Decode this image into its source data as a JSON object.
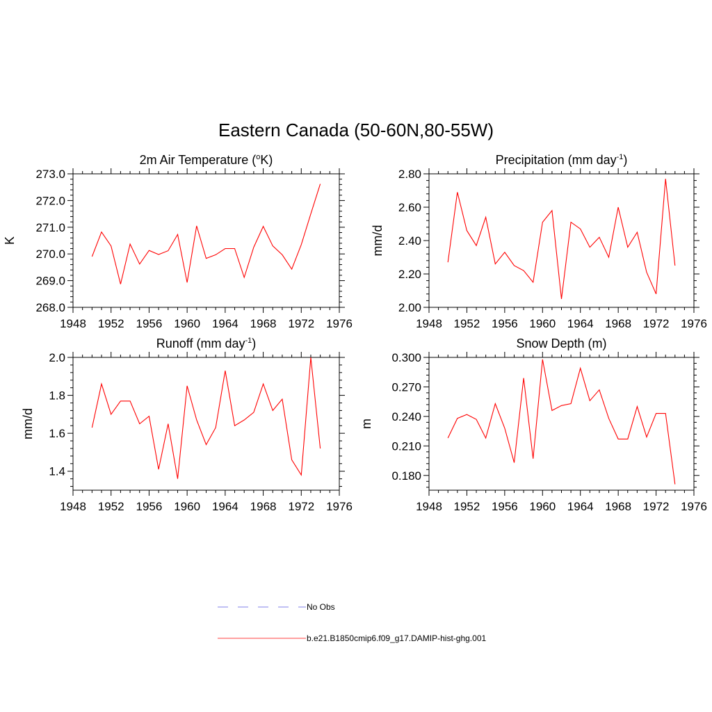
{
  "page": {
    "title": "Eastern Canada (50-60N,80-55W)"
  },
  "legend": {
    "placement": "bottom-center",
    "items": [
      {
        "label": "No Obs",
        "color": "#9999ee",
        "style": "dashed"
      },
      {
        "label": "b.e21.B1850cmip6.f09_g17.DAMIP-hist-ghg.001",
        "color": "#ff6666",
        "style": "solid"
      }
    ]
  },
  "chart_data": [
    {
      "type": "line",
      "panel": "top-left",
      "title": "2m Air Temperature (",
      "title_sup": "o",
      "title_suffix": "K)",
      "xlabel": "",
      "ylabel": "K",
      "xlim": [
        1948,
        1976
      ],
      "ylim": [
        268.0,
        273.0
      ],
      "xticks": [
        1948,
        1952,
        1956,
        1960,
        1964,
        1968,
        1972,
        1976
      ],
      "yticks": [
        268.0,
        269.0,
        270.0,
        271.0,
        272.0,
        273.0
      ],
      "ytick_labels": [
        "268.0",
        "269.0",
        "270.0",
        "271.0",
        "272.0",
        "273.0"
      ],
      "series": [
        {
          "color": "#ff0000",
          "x": [
            1950,
            1951,
            1952,
            1953,
            1954,
            1955,
            1956,
            1957,
            1958,
            1959,
            1960,
            1961,
            1962,
            1963,
            1964,
            1965,
            1966,
            1967,
            1968,
            1969,
            1970,
            1971,
            1972,
            1973,
            1974
          ],
          "y": [
            269.9,
            270.82,
            270.3,
            268.87,
            270.37,
            269.62,
            270.13,
            269.98,
            270.12,
            270.73,
            268.93,
            271.05,
            269.83,
            269.97,
            270.2,
            270.2,
            269.12,
            270.25,
            271.03,
            270.3,
            269.97,
            269.43,
            270.35,
            271.5,
            272.62
          ]
        }
      ]
    },
    {
      "type": "line",
      "panel": "top-right",
      "title": "Precipitation (mm day",
      "title_sup": "-1",
      "title_suffix": ")",
      "xlabel": "",
      "ylabel": "mm/d",
      "xlim": [
        1948,
        1976
      ],
      "ylim": [
        2.0,
        2.8
      ],
      "xticks": [
        1948,
        1952,
        1956,
        1960,
        1964,
        1968,
        1972,
        1976
      ],
      "yticks": [
        2.0,
        2.2,
        2.4,
        2.6,
        2.8
      ],
      "ytick_labels": [
        "2.00",
        "2.20",
        "2.40",
        "2.60",
        "2.80"
      ],
      "series": [
        {
          "color": "#ff0000",
          "x": [
            1950,
            1951,
            1952,
            1953,
            1954,
            1955,
            1956,
            1957,
            1958,
            1959,
            1960,
            1961,
            1962,
            1963,
            1964,
            1965,
            1966,
            1967,
            1968,
            1969,
            1970,
            1971,
            1972,
            1973,
            1974
          ],
          "y": [
            2.27,
            2.69,
            2.46,
            2.37,
            2.54,
            2.26,
            2.33,
            2.25,
            2.22,
            2.15,
            2.51,
            2.58,
            2.05,
            2.51,
            2.47,
            2.36,
            2.42,
            2.3,
            2.6,
            2.36,
            2.45,
            2.21,
            2.08,
            2.77,
            2.25
          ]
        }
      ]
    },
    {
      "type": "line",
      "panel": "bottom-left",
      "title": "Runoff (mm day",
      "title_sup": "-1",
      "title_suffix": ")",
      "xlabel": "",
      "ylabel": "mm/d",
      "xlim": [
        1948,
        1976
      ],
      "ylim": [
        1.3,
        2.0
      ],
      "xticks": [
        1948,
        1952,
        1956,
        1960,
        1964,
        1968,
        1972,
        1976
      ],
      "yticks": [
        1.4,
        1.6,
        1.8,
        2.0
      ],
      "ytick_labels": [
        "1.4",
        "1.6",
        "1.8",
        "2.0"
      ],
      "series": [
        {
          "color": "#ff0000",
          "x": [
            1950,
            1951,
            1952,
            1953,
            1954,
            1955,
            1956,
            1957,
            1958,
            1959,
            1960,
            1961,
            1962,
            1963,
            1964,
            1965,
            1966,
            1967,
            1968,
            1969,
            1970,
            1971,
            1972,
            1973,
            1974
          ],
          "y": [
            1.63,
            1.86,
            1.7,
            1.77,
            1.77,
            1.65,
            1.69,
            1.41,
            1.65,
            1.36,
            1.85,
            1.67,
            1.54,
            1.63,
            1.93,
            1.64,
            1.67,
            1.71,
            1.86,
            1.72,
            1.78,
            1.46,
            1.38,
            2.0,
            1.52
          ]
        }
      ]
    },
    {
      "type": "line",
      "panel": "bottom-right",
      "title": "Snow Depth (m)",
      "title_sup": "",
      "title_suffix": "",
      "xlabel": "",
      "ylabel": "m",
      "xlim": [
        1948,
        1976
      ],
      "ylim": [
        0.165,
        0.3
      ],
      "xticks": [
        1948,
        1952,
        1956,
        1960,
        1964,
        1968,
        1972,
        1976
      ],
      "yticks": [
        0.18,
        0.21,
        0.24,
        0.27,
        0.3
      ],
      "ytick_labels": [
        "0.180",
        "0.210",
        "0.240",
        "0.270",
        "0.300"
      ],
      "series": [
        {
          "color": "#ff0000",
          "x": [
            1950,
            1951,
            1952,
            1953,
            1954,
            1955,
            1956,
            1957,
            1958,
            1959,
            1960,
            1961,
            1962,
            1963,
            1964,
            1965,
            1966,
            1967,
            1968,
            1969,
            1970,
            1971,
            1972,
            1973,
            1974
          ],
          "y": [
            0.218,
            0.238,
            0.242,
            0.237,
            0.218,
            0.253,
            0.228,
            0.193,
            0.279,
            0.197,
            0.298,
            0.246,
            0.251,
            0.253,
            0.289,
            0.256,
            0.267,
            0.238,
            0.217,
            0.217,
            0.25,
            0.219,
            0.243,
            0.243,
            0.171
          ]
        }
      ]
    }
  ]
}
